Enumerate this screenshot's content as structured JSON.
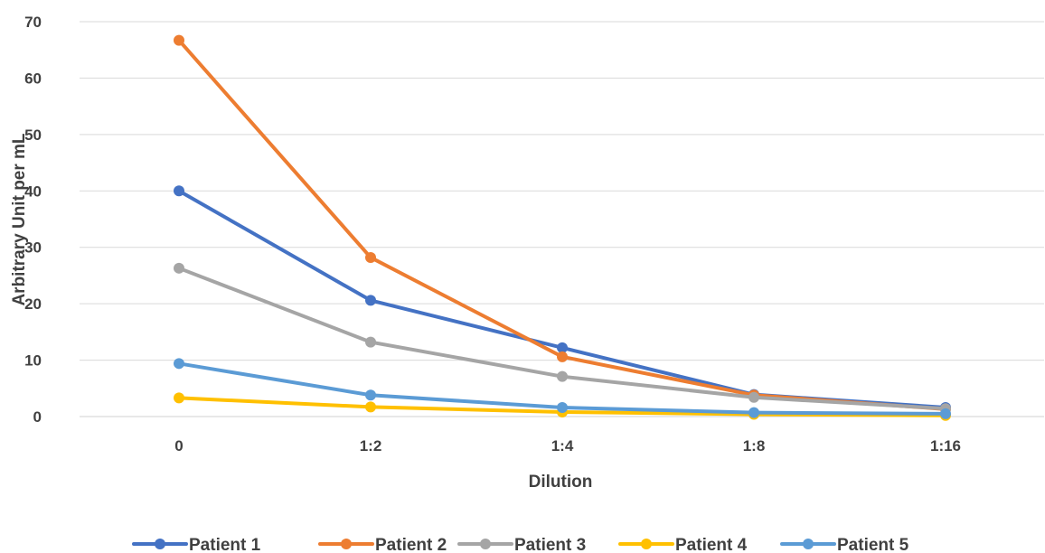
{
  "chart_data": {
    "type": "line",
    "categories": [
      "0",
      "1:2",
      "1:4",
      "1:8",
      "1:16"
    ],
    "series": [
      {
        "name": "Patient 1",
        "color": "#4472C4",
        "values": [
          40,
          20.6,
          12.2,
          3.9,
          1.6
        ]
      },
      {
        "name": "Patient 2",
        "color": "#ED7D31",
        "values": [
          66.7,
          28.2,
          10.6,
          3.8,
          1.3
        ]
      },
      {
        "name": "Patient 3",
        "color": "#A5A5A5",
        "values": [
          26.3,
          13.2,
          7.1,
          3.4,
          1.4
        ]
      },
      {
        "name": "Patient 4",
        "color": "#FFC000",
        "values": [
          3.3,
          1.7,
          0.8,
          0.4,
          0.2
        ]
      },
      {
        "name": "Patient 5",
        "color": "#5B9BD5",
        "values": [
          9.4,
          3.8,
          1.6,
          0.7,
          0.5
        ]
      }
    ],
    "xlabel": "Dilution",
    "ylabel": "Arbitrary Unit  per mL",
    "ylim": [
      0,
      70
    ],
    "yticks": [
      "0",
      "10",
      "20",
      "30",
      "40",
      "50",
      "60",
      "70"
    ],
    "grid": true,
    "legend": "bottom"
  }
}
